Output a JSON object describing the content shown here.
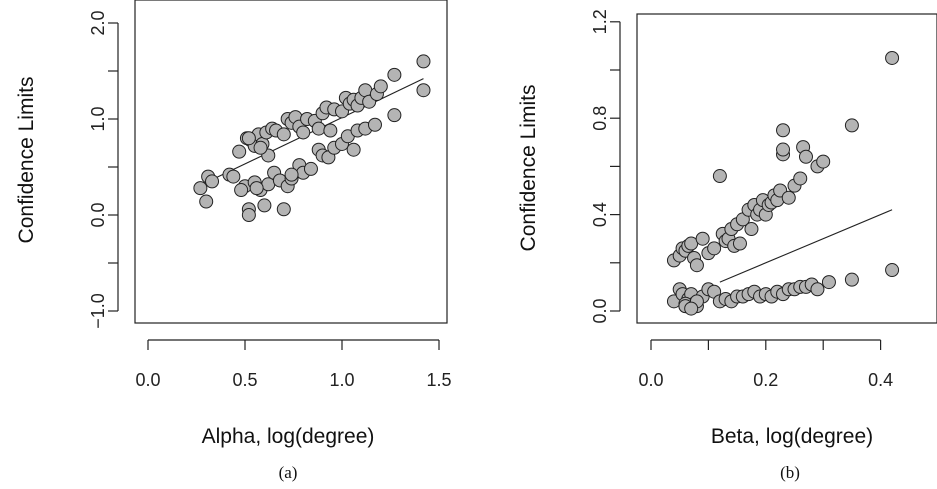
{
  "chart_data": [
    {
      "type": "scatter",
      "panel_label": "(a)",
      "xlabel": "Alpha, log(degree)",
      "ylabel": "Confidence Limits",
      "xlim": [
        -0.08,
        1.55
      ],
      "ylim": [
        -1.2,
        2.05
      ],
      "xticks": [
        0.0,
        0.5,
        1.0,
        1.5
      ],
      "xtick_labels": [
        "0.0",
        "0.5",
        "1.0",
        "1.5"
      ],
      "yticks": [
        -1.0,
        -0.5,
        0.0,
        0.5,
        1.0,
        1.5,
        2.0
      ],
      "ytick_labels": [
        "−1.0",
        "",
        "0.0",
        "",
        "1.0",
        "",
        "2.0"
      ],
      "grid": false,
      "fit_line": {
        "x": [
          0.28,
          1.42
        ],
        "y": [
          0.32,
          1.42
        ]
      },
      "series": [
        {
          "x": [
            0.27,
            0.31,
            0.33,
            0.42,
            0.47,
            0.51,
            0.53,
            0.55,
            0.57,
            0.59,
            0.61,
            0.62,
            0.64,
            0.66,
            0.7,
            0.72,
            0.74,
            0.76,
            0.78,
            0.8,
            0.82,
            0.86,
            0.88,
            0.9,
            0.92,
            0.94,
            0.96,
            1.0,
            1.02,
            1.04,
            1.06,
            1.08,
            1.1,
            1.12,
            1.14,
            1.18,
            1.2,
            1.27,
            1.42,
            0.5,
            0.52,
            0.55,
            0.58,
            0.62,
            0.65,
            0.68,
            0.72,
            0.74,
            0.78,
            0.8,
            0.84,
            0.88,
            0.9,
            0.93,
            0.96,
            1.0,
            1.03,
            1.06,
            1.08,
            1.12,
            1.17,
            1.27,
            1.42,
            0.3,
            0.44,
            0.48,
            0.52,
            0.56,
            0.6,
            0.7,
            0.74,
            0.52,
            0.58
          ],
          "y": [
            0.28,
            0.4,
            0.35,
            0.42,
            0.66,
            0.8,
            0.78,
            0.72,
            0.84,
            0.74,
            0.86,
            0.62,
            0.9,
            0.88,
            0.84,
            1.0,
            0.96,
            1.02,
            0.92,
            0.86,
            1.0,
            0.98,
            0.9,
            1.06,
            1.12,
            0.88,
            1.1,
            1.08,
            1.22,
            1.16,
            1.2,
            1.14,
            1.22,
            1.3,
            1.18,
            1.26,
            1.34,
            1.46,
            1.6,
            0.3,
            0.06,
            0.34,
            0.26,
            0.32,
            0.44,
            0.36,
            0.3,
            0.38,
            0.52,
            0.44,
            0.48,
            0.68,
            0.62,
            0.6,
            0.7,
            0.74,
            0.82,
            0.68,
            0.88,
            0.9,
            0.94,
            1.04,
            1.3,
            0.14,
            0.4,
            0.26,
            0.0,
            0.28,
            0.1,
            0.06,
            0.42,
            0.8,
            0.7
          ]
        }
      ]
    },
    {
      "type": "scatter",
      "panel_label": "(b)",
      "xlabel": "Beta, log(degree)",
      "ylabel": "Confidence Limits",
      "xlim": [
        -0.03,
        0.46
      ],
      "ylim": [
        -0.02,
        1.22
      ],
      "xticks": [
        0.0,
        0.1,
        0.2,
        0.3,
        0.4
      ],
      "xtick_labels": [
        "0.0",
        "",
        "0.2",
        "",
        "0.4"
      ],
      "yticks": [
        0.0,
        0.2,
        0.4,
        0.6,
        0.8,
        1.0,
        1.2
      ],
      "ytick_labels": [
        "0.0",
        "",
        "0.4",
        "",
        "0.8",
        "",
        "1.2"
      ],
      "grid": false,
      "fit_line": {
        "x": [
          0.12,
          0.42
        ],
        "y": [
          0.12,
          0.42
        ]
      },
      "series": [
        {
          "x": [
            0.04,
            0.05,
            0.055,
            0.06,
            0.065,
            0.07,
            0.075,
            0.08,
            0.09,
            0.1,
            0.11,
            0.12,
            0.125,
            0.13,
            0.135,
            0.14,
            0.145,
            0.15,
            0.155,
            0.16,
            0.17,
            0.175,
            0.18,
            0.185,
            0.19,
            0.195,
            0.2,
            0.205,
            0.21,
            0.215,
            0.22,
            0.225,
            0.23,
            0.23,
            0.23,
            0.24,
            0.25,
            0.26,
            0.265,
            0.27,
            0.29,
            0.3,
            0.35,
            0.42,
            0.04,
            0.05,
            0.055,
            0.06,
            0.065,
            0.07,
            0.075,
            0.08,
            0.09,
            0.1,
            0.11,
            0.12,
            0.13,
            0.14,
            0.15,
            0.16,
            0.17,
            0.18,
            0.19,
            0.2,
            0.21,
            0.22,
            0.23,
            0.24,
            0.25,
            0.26,
            0.27,
            0.28,
            0.29,
            0.31,
            0.35,
            0.42,
            0.06,
            0.08,
            0.06,
            0.07
          ],
          "y": [
            0.21,
            0.23,
            0.26,
            0.25,
            0.27,
            0.28,
            0.22,
            0.19,
            0.3,
            0.24,
            0.26,
            0.56,
            0.32,
            0.29,
            0.3,
            0.34,
            0.27,
            0.36,
            0.28,
            0.38,
            0.42,
            0.34,
            0.44,
            0.4,
            0.42,
            0.46,
            0.4,
            0.44,
            0.45,
            0.48,
            0.46,
            0.5,
            0.65,
            0.67,
            0.75,
            0.47,
            0.52,
            0.55,
            0.68,
            0.64,
            0.6,
            0.62,
            0.77,
            1.05,
            0.04,
            0.09,
            0.07,
            0.02,
            0.05,
            0.07,
            0.03,
            0.02,
            0.06,
            0.09,
            0.08,
            0.04,
            0.05,
            0.04,
            0.06,
            0.06,
            0.07,
            0.08,
            0.06,
            0.07,
            0.06,
            0.08,
            0.07,
            0.09,
            0.09,
            0.1,
            0.1,
            0.11,
            0.09,
            0.12,
            0.13,
            0.17,
            0.03,
            0.04,
            0.02,
            0.01
          ]
        }
      ]
    }
  ]
}
